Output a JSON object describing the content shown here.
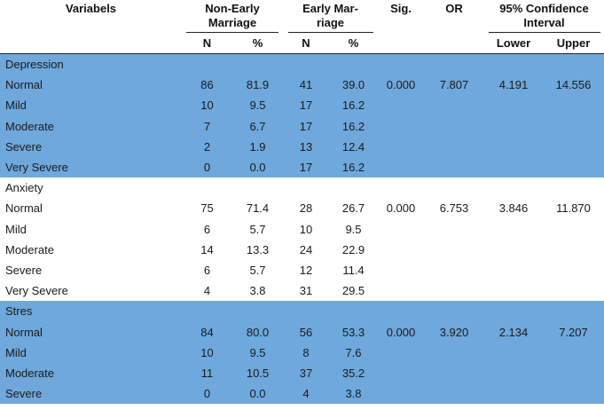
{
  "header": {
    "variables": "Variabels",
    "non_early": "Non-Early Marriage",
    "early": "Early Mar- riage",
    "sig": "Sig.",
    "or": "OR",
    "ci": "95% Confidence Interval",
    "n": "N",
    "pct": "%",
    "lower": "Lower",
    "upper": "Upper"
  },
  "groups": [
    {
      "name": "Depression",
      "sig": "0.000",
      "or": "7.807",
      "lower": "4.191",
      "upper": "14.556",
      "rows": [
        {
          "label": "Normal",
          "n1": "86",
          "p1": "81.9",
          "n2": "41",
          "p2": "39.0"
        },
        {
          "label": "Mild",
          "n1": "10",
          "p1": "9.5",
          "n2": "17",
          "p2": "16.2"
        },
        {
          "label": "Moderate",
          "n1": "7",
          "p1": "6.7",
          "n2": "17",
          "p2": "16.2"
        },
        {
          "label": "Severe",
          "n1": "2",
          "p1": "1.9",
          "n2": "13",
          "p2": "12.4"
        },
        {
          "label": "Very Severe",
          "n1": "0",
          "p1": "0.0",
          "n2": "17",
          "p2": "16.2"
        }
      ]
    },
    {
      "name": "Anxiety",
      "sig": "0.000",
      "or": "6.753",
      "lower": "3.846",
      "upper": "11.870",
      "rows": [
        {
          "label": "Normal",
          "n1": "75",
          "p1": "71.4",
          "n2": "28",
          "p2": "26.7"
        },
        {
          "label": "Mild",
          "n1": "6",
          "p1": "5.7",
          "n2": "10",
          "p2": "9.5"
        },
        {
          "label": "Moderate",
          "n1": "14",
          "p1": "13.3",
          "n2": "24",
          "p2": "22.9"
        },
        {
          "label": "Severe",
          "n1": "6",
          "p1": "5.7",
          "n2": "12",
          "p2": "11.4"
        },
        {
          "label": "Very Severe",
          "n1": "4",
          "p1": "3.8",
          "n2": "31",
          "p2": "29.5"
        }
      ]
    },
    {
      "name": "Stres",
      "sig": "0.000",
      "or": "3.920",
      "lower": "2.134",
      "upper": "7.207",
      "rows": [
        {
          "label": "Normal",
          "n1": "84",
          "p1": "80.0",
          "n2": "56",
          "p2": "53.3"
        },
        {
          "label": "Mild",
          "n1": "10",
          "p1": "9.5",
          "n2": "8",
          "p2": "7.6"
        },
        {
          "label": "Moderate",
          "n1": "11",
          "p1": "10.5",
          "n2": "37",
          "p2": "35.2"
        },
        {
          "label": "Severe",
          "n1": "0",
          "p1": "0.0",
          "n2": "4",
          "p2": "3.8"
        }
      ]
    }
  ]
}
